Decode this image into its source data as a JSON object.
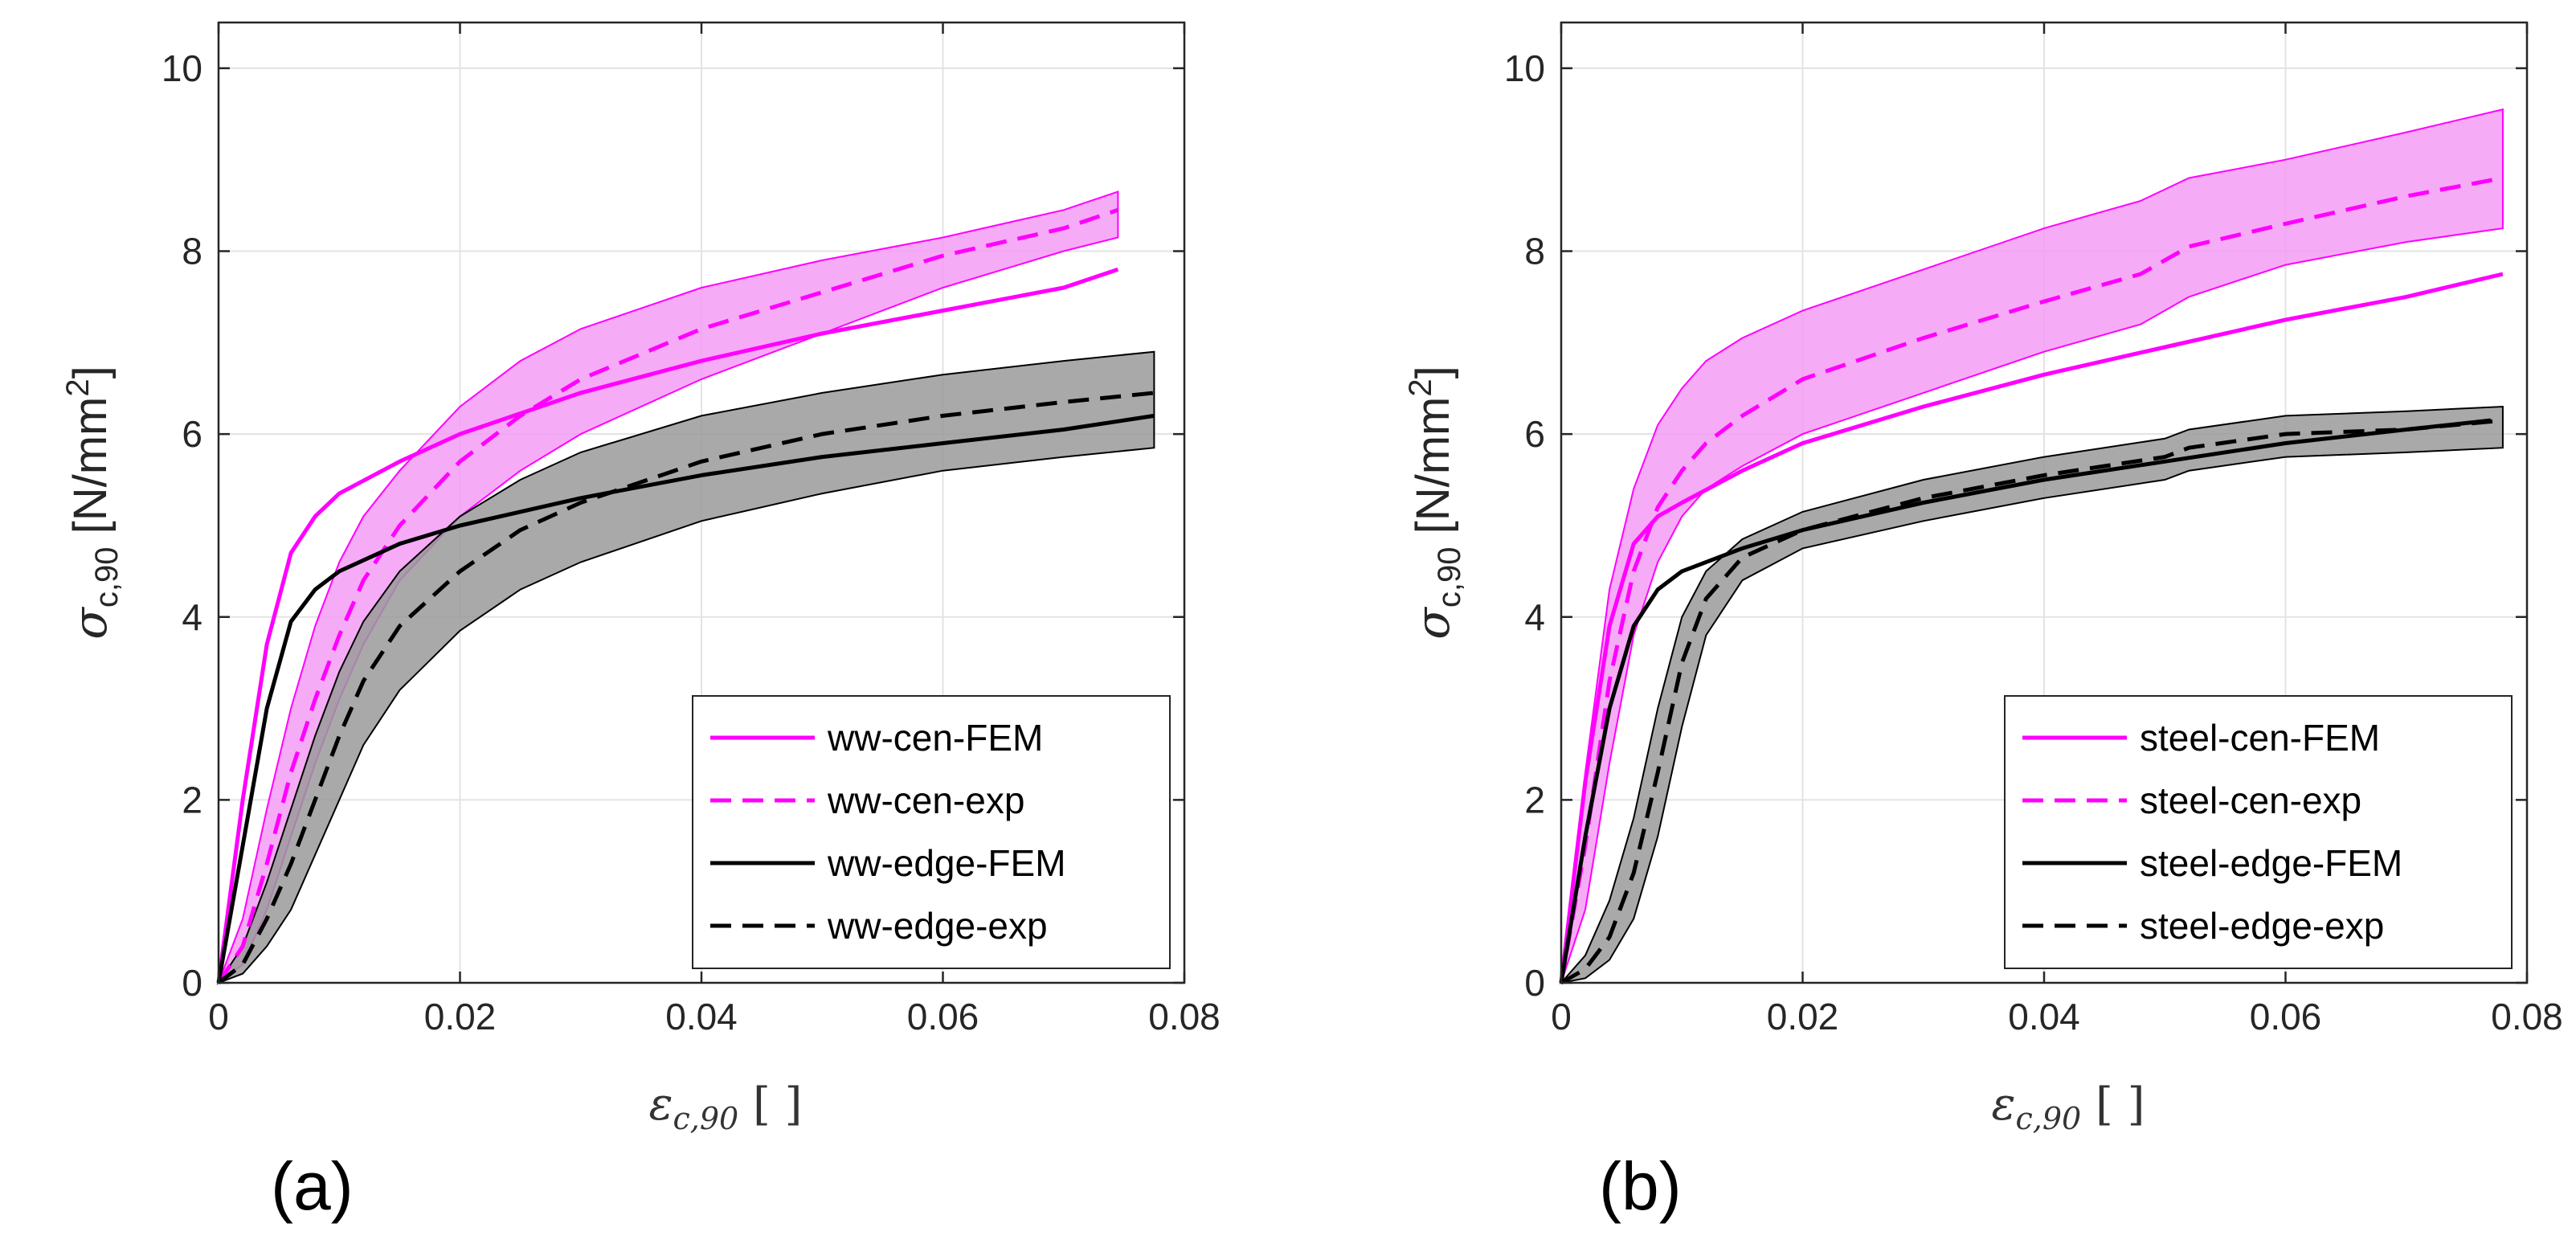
{
  "chart_data": [
    {
      "type": "line",
      "panel_label": "(a)",
      "ylabel_main": "σ",
      "ylabel_sub": "c,90",
      "ylabel_unit": "[N/mm",
      "ylabel_unit_sup": "2",
      "ylabel_unit_close": "]",
      "xlabel_main": "ε",
      "xlabel_sub": "c,90",
      "xlabel_unit": "[ ]",
      "xlim": [
        0,
        0.08
      ],
      "ylim": [
        0,
        10.5
      ],
      "xticks": [
        0,
        0.02,
        0.04,
        0.06,
        0.08
      ],
      "xtick_labels": [
        "0",
        "0.02",
        "0.04",
        "0.06",
        "0.08"
      ],
      "yticks": [
        0,
        2,
        4,
        6,
        8,
        10
      ],
      "ytick_labels": [
        "0",
        "2",
        "4",
        "6",
        "8",
        "10"
      ],
      "grid": true,
      "legend_position": "bottom-right",
      "series": [
        {
          "name": "ww-cen-FEM",
          "color": "#ff00ff",
          "dash": "solid",
          "x": [
            0,
            0.002,
            0.004,
            0.006,
            0.008,
            0.01,
            0.015,
            0.02,
            0.03,
            0.04,
            0.05,
            0.06,
            0.07,
            0.0745
          ],
          "y": [
            0,
            2.0,
            3.7,
            4.7,
            5.1,
            5.35,
            5.7,
            6.0,
            6.45,
            6.8,
            7.1,
            7.35,
            7.6,
            7.8
          ]
        },
        {
          "name": "ww-cen-exp",
          "color": "#ff00ff",
          "dash": "dashed",
          "x": [
            0,
            0.002,
            0.004,
            0.006,
            0.008,
            0.01,
            0.012,
            0.015,
            0.02,
            0.025,
            0.03,
            0.04,
            0.05,
            0.06,
            0.07,
            0.0745
          ],
          "y": [
            0,
            0.4,
            1.3,
            2.3,
            3.1,
            3.8,
            4.4,
            5.0,
            5.7,
            6.2,
            6.6,
            7.15,
            7.55,
            7.95,
            8.25,
            8.45
          ],
          "band_upper": [
            0,
            0.7,
            1.9,
            3.0,
            3.9,
            4.6,
            5.1,
            5.6,
            6.3,
            6.8,
            7.15,
            7.6,
            7.9,
            8.15,
            8.45,
            8.65
          ],
          "band_lower": [
            0,
            0.2,
            0.8,
            1.6,
            2.4,
            3.1,
            3.7,
            4.4,
            5.1,
            5.6,
            6.0,
            6.6,
            7.1,
            7.6,
            8.0,
            8.15
          ]
        },
        {
          "name": "ww-edge-FEM",
          "color": "#000000",
          "dash": "solid",
          "x": [
            0,
            0.002,
            0.004,
            0.006,
            0.008,
            0.01,
            0.015,
            0.02,
            0.03,
            0.04,
            0.05,
            0.06,
            0.07,
            0.0775
          ],
          "y": [
            0,
            1.5,
            3.0,
            3.95,
            4.3,
            4.5,
            4.8,
            5.0,
            5.3,
            5.55,
            5.75,
            5.9,
            6.05,
            6.2
          ]
        },
        {
          "name": "ww-edge-exp",
          "color": "#000000",
          "dash": "dashed",
          "x": [
            0,
            0.002,
            0.004,
            0.006,
            0.008,
            0.01,
            0.012,
            0.015,
            0.02,
            0.025,
            0.03,
            0.04,
            0.05,
            0.06,
            0.07,
            0.0775
          ],
          "y": [
            0,
            0.2,
            0.7,
            1.3,
            2.0,
            2.7,
            3.3,
            3.9,
            4.5,
            4.95,
            5.25,
            5.7,
            6.0,
            6.2,
            6.35,
            6.45
          ],
          "band_upper": [
            0,
            0.4,
            1.1,
            1.9,
            2.7,
            3.4,
            3.95,
            4.5,
            5.1,
            5.5,
            5.8,
            6.2,
            6.45,
            6.65,
            6.8,
            6.9
          ],
          "band_lower": [
            0,
            0.1,
            0.4,
            0.8,
            1.4,
            2.0,
            2.6,
            3.2,
            3.85,
            4.3,
            4.6,
            5.05,
            5.35,
            5.6,
            5.75,
            5.85
          ]
        }
      ]
    },
    {
      "type": "line",
      "panel_label": "(b)",
      "ylabel_main": "σ",
      "ylabel_sub": "c,90",
      "ylabel_unit": "[N/mm",
      "ylabel_unit_sup": "2",
      "ylabel_unit_close": "]",
      "xlabel_main": "ε",
      "xlabel_sub": "c,90",
      "xlabel_unit": "[ ]",
      "xlim": [
        0,
        0.08
      ],
      "ylim": [
        0,
        10.5
      ],
      "xticks": [
        0,
        0.02,
        0.04,
        0.06,
        0.08
      ],
      "xtick_labels": [
        "0",
        "0.02",
        "0.04",
        "0.06",
        "0.08"
      ],
      "yticks": [
        0,
        2,
        4,
        6,
        8,
        10
      ],
      "ytick_labels": [
        "0",
        "2",
        "4",
        "6",
        "8",
        "10"
      ],
      "grid": true,
      "legend_position": "bottom-right",
      "series": [
        {
          "name": "steel-cen-FEM",
          "color": "#ff00ff",
          "dash": "solid",
          "x": [
            0,
            0.002,
            0.004,
            0.006,
            0.008,
            0.01,
            0.015,
            0.02,
            0.03,
            0.04,
            0.05,
            0.06,
            0.07,
            0.078
          ],
          "y": [
            0,
            2.2,
            3.9,
            4.8,
            5.1,
            5.25,
            5.6,
            5.9,
            6.3,
            6.65,
            6.95,
            7.25,
            7.5,
            7.75
          ]
        },
        {
          "name": "steel-cen-exp",
          "color": "#ff00ff",
          "dash": "dashed",
          "x": [
            0,
            0.002,
            0.004,
            0.006,
            0.008,
            0.01,
            0.012,
            0.015,
            0.02,
            0.03,
            0.04,
            0.048,
            0.052,
            0.06,
            0.07,
            0.078
          ],
          "y": [
            0,
            1.5,
            3.3,
            4.5,
            5.2,
            5.6,
            5.9,
            6.2,
            6.6,
            7.05,
            7.45,
            7.75,
            8.05,
            8.3,
            8.6,
            8.8
          ],
          "band_upper": [
            0,
            2.3,
            4.3,
            5.4,
            6.1,
            6.5,
            6.8,
            7.05,
            7.35,
            7.8,
            8.25,
            8.55,
            8.8,
            9.0,
            9.3,
            9.55
          ],
          "band_lower": [
            0,
            0.8,
            2.4,
            3.8,
            4.6,
            5.1,
            5.4,
            5.65,
            6.0,
            6.45,
            6.9,
            7.2,
            7.5,
            7.85,
            8.1,
            8.25
          ]
        },
        {
          "name": "steel-edge-FEM",
          "color": "#000000",
          "dash": "solid",
          "x": [
            0,
            0.002,
            0.004,
            0.006,
            0.008,
            0.01,
            0.015,
            0.02,
            0.03,
            0.04,
            0.05,
            0.06,
            0.07,
            0.077
          ],
          "y": [
            0,
            1.6,
            3.0,
            3.9,
            4.3,
            4.5,
            4.75,
            4.95,
            5.25,
            5.5,
            5.7,
            5.9,
            6.05,
            6.15
          ]
        },
        {
          "name": "steel-edge-exp",
          "color": "#000000",
          "dash": "dashed",
          "x": [
            0,
            0.002,
            0.004,
            0.006,
            0.008,
            0.01,
            0.012,
            0.015,
            0.02,
            0.03,
            0.04,
            0.05,
            0.052,
            0.06,
            0.07,
            0.078
          ],
          "y": [
            0,
            0.15,
            0.5,
            1.2,
            2.3,
            3.5,
            4.2,
            4.65,
            4.95,
            5.3,
            5.55,
            5.75,
            5.85,
            6.0,
            6.05,
            6.15
          ],
          "band_upper": [
            0,
            0.3,
            0.9,
            1.8,
            3.0,
            4.0,
            4.5,
            4.85,
            5.15,
            5.5,
            5.75,
            5.95,
            6.05,
            6.2,
            6.25,
            6.3
          ],
          "band_lower": [
            0,
            0.05,
            0.25,
            0.7,
            1.6,
            2.8,
            3.8,
            4.4,
            4.75,
            5.05,
            5.3,
            5.5,
            5.6,
            5.75,
            5.8,
            5.85
          ]
        }
      ]
    }
  ]
}
